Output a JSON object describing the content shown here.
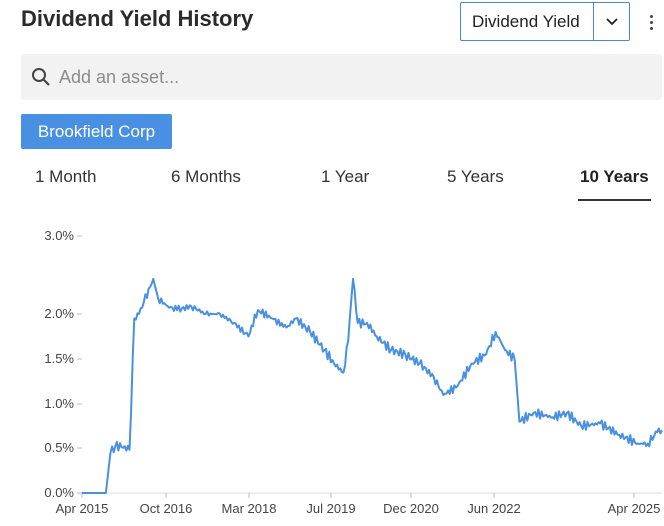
{
  "header": {
    "title": "Dividend Yield History",
    "metric_select_value": "Dividend Yield"
  },
  "search": {
    "placeholder": "Add an asset..."
  },
  "asset_chip": {
    "label": "Brookfield Corp"
  },
  "tabs": [
    {
      "label": "1 Month",
      "active": false
    },
    {
      "label": "6 Months",
      "active": false
    },
    {
      "label": "1 Year",
      "active": false
    },
    {
      "label": "5 Years",
      "active": false
    },
    {
      "label": "10 Years",
      "active": true
    }
  ],
  "colors": {
    "accent": "#4a90e2",
    "line": "#4a90e2"
  },
  "chart_data": {
    "type": "line",
    "title": "",
    "xlabel": "",
    "ylabel": "",
    "ylim": [
      0,
      3
    ],
    "xlim": [
      "2015-04",
      "2025-06"
    ],
    "y_ticks": [
      "0.0%",
      "0.5%",
      "1.0%",
      "1.5%",
      "2.0%",
      "3.0%"
    ],
    "x_ticks": [
      "Apr 2015",
      "Oct 2016",
      "Mar 2018",
      "Jul 2019",
      "Dec 2020",
      "Jun 2022",
      "Apr 2025"
    ],
    "series": [
      {
        "values": [
          [
            "2015-04",
            0.0
          ],
          [
            "2015-07",
            0.0
          ],
          [
            "2015-09",
            0.0
          ],
          [
            "2015-10",
            0.45
          ],
          [
            "2015-11",
            0.52
          ],
          [
            "2016-01",
            0.52
          ],
          [
            "2016-02",
            0.48
          ],
          [
            "2016-03",
            1.95
          ],
          [
            "2016-04",
            2.0
          ],
          [
            "2016-05",
            2.15
          ],
          [
            "2016-07",
            2.45
          ],
          [
            "2016-08",
            2.2
          ],
          [
            "2016-10",
            2.1
          ],
          [
            "2016-12",
            2.05
          ],
          [
            "2017-03",
            2.1
          ],
          [
            "2017-06",
            2.0
          ],
          [
            "2017-09",
            2.0
          ],
          [
            "2017-12",
            1.9
          ],
          [
            "2018-03",
            1.75
          ],
          [
            "2018-05",
            2.05
          ],
          [
            "2018-08",
            1.95
          ],
          [
            "2018-11",
            1.85
          ],
          [
            "2019-01",
            1.95
          ],
          [
            "2019-04",
            1.8
          ],
          [
            "2019-07",
            1.6
          ],
          [
            "2019-09",
            1.45
          ],
          [
            "2019-11",
            1.35
          ],
          [
            "2019-12",
            1.7
          ],
          [
            "2020-01",
            2.45
          ],
          [
            "2020-02",
            1.9
          ],
          [
            "2020-04",
            1.9
          ],
          [
            "2020-06",
            1.75
          ],
          [
            "2020-09",
            1.6
          ],
          [
            "2020-12",
            1.55
          ],
          [
            "2021-03",
            1.45
          ],
          [
            "2021-06",
            1.3
          ],
          [
            "2021-08",
            1.1
          ],
          [
            "2021-11",
            1.2
          ],
          [
            "2022-02",
            1.45
          ],
          [
            "2022-05",
            1.55
          ],
          [
            "2022-07",
            1.8
          ],
          [
            "2022-09",
            1.6
          ],
          [
            "2022-11",
            1.5
          ],
          [
            "2022-12",
            0.8
          ],
          [
            "2023-03",
            0.9
          ],
          [
            "2023-07",
            0.85
          ],
          [
            "2023-10",
            0.9
          ],
          [
            "2024-01",
            0.75
          ],
          [
            "2024-05",
            0.78
          ],
          [
            "2024-09",
            0.65
          ],
          [
            "2025-01",
            0.55
          ],
          [
            "2025-03",
            0.55
          ],
          [
            "2025-05",
            0.68
          ],
          [
            "2025-06",
            0.7
          ]
        ]
      }
    ]
  }
}
